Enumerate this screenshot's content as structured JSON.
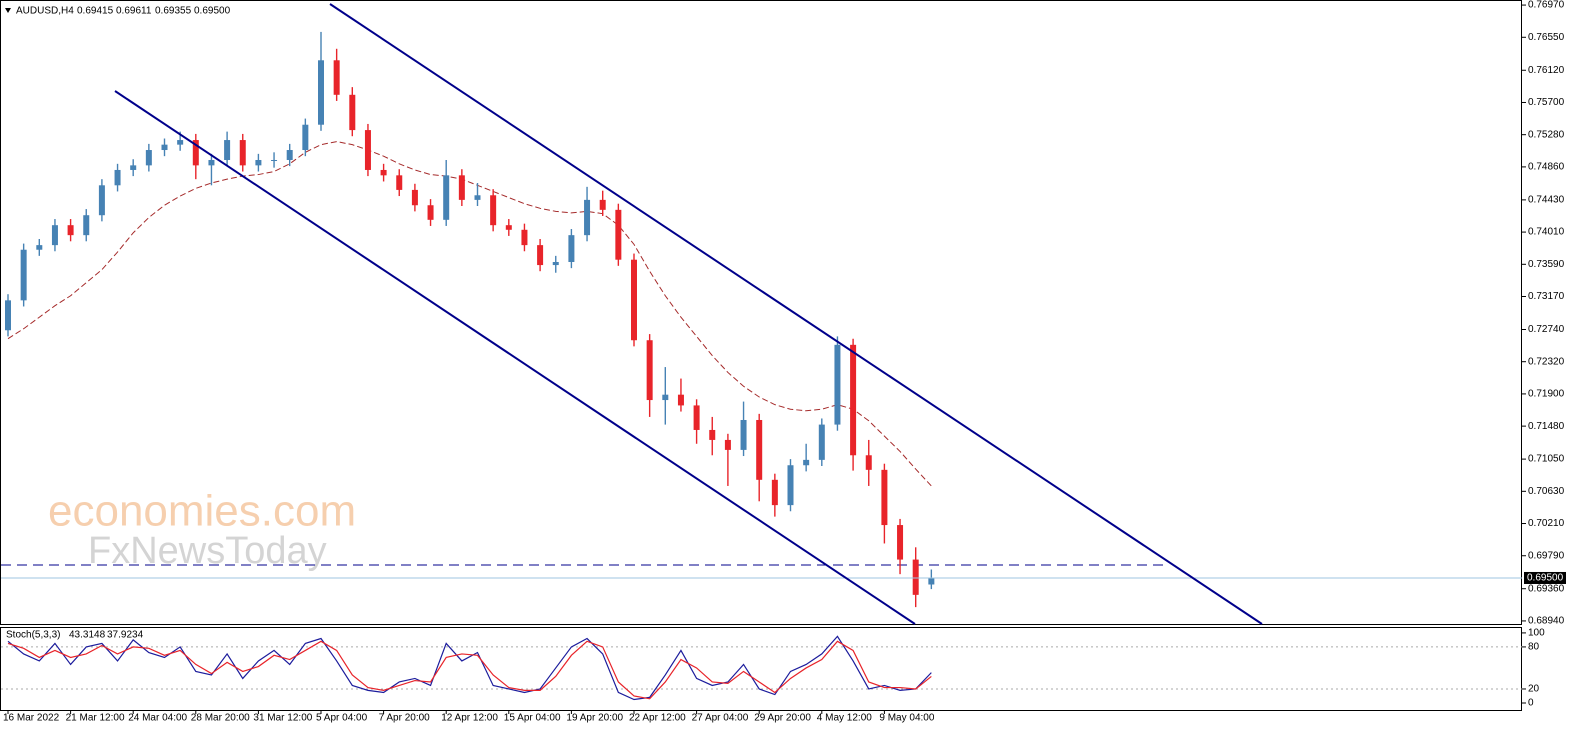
{
  "chart_data": [
    {
      "type": "candlestick",
      "title": "AUDUSD,H4",
      "last_close_label": "0.69500",
      "watermark": [
        "economies.com",
        "FxNewsToday"
      ],
      "up_color": "#4682b4",
      "down_color": "#e8242a",
      "categories": [
        "16 Mar 2022",
        null,
        null,
        null,
        "21 Mar 12:00",
        null,
        null,
        null,
        "24 Mar 04:00",
        null,
        null,
        null,
        "28 Mar 20:00",
        null,
        null,
        null,
        "31 Mar 12:00",
        null,
        null,
        null,
        "5 Apr 04:00",
        null,
        null,
        null,
        "7 Apr 20:00",
        null,
        null,
        null,
        "12 Apr 12:00",
        null,
        null,
        null,
        "15 Apr 04:00",
        null,
        null,
        null,
        "19 Apr 20:00",
        null,
        null,
        null,
        "22 Apr 12:00",
        null,
        null,
        null,
        "27 Apr 04:00",
        null,
        null,
        null,
        "29 Apr 20:00",
        null,
        null,
        null,
        "4 May 12:00",
        null,
        null,
        null,
        "9 May 04:00",
        null,
        null,
        null
      ],
      "open": [
        0.7273,
        0.7312,
        0.7378,
        0.7384,
        0.741,
        0.7397,
        0.7423,
        0.7462,
        0.7482,
        0.7488,
        0.7508,
        0.7515,
        0.7521,
        0.7488,
        0.7495,
        0.7521,
        0.7488,
        0.7495,
        0.7495,
        0.7508,
        0.7541,
        0.7625,
        0.758,
        0.7534,
        0.7482,
        0.7475,
        0.7456,
        0.7436,
        0.7417,
        0.7475,
        0.7443,
        0.7449,
        0.741,
        0.7404,
        0.7384,
        0.7358,
        0.7362,
        0.7397,
        0.7443,
        0.743,
        0.7365,
        0.726,
        0.7182,
        0.7189,
        0.7175,
        0.7143,
        0.713,
        0.7117,
        0.7156,
        0.7078,
        0.7045,
        0.7097,
        0.7104,
        0.715,
        0.7254,
        0.711,
        0.7091,
        0.7019,
        0.6974,
        0.69415
      ],
      "high": [
        0.732,
        0.7386,
        0.7392,
        0.7418,
        0.7418,
        0.7431,
        0.747,
        0.749,
        0.7496,
        0.7516,
        0.7523,
        0.7532,
        0.7529,
        0.7503,
        0.7532,
        0.7529,
        0.7503,
        0.7505,
        0.7516,
        0.7549,
        0.7662,
        0.764,
        0.759,
        0.7542,
        0.749,
        0.7483,
        0.7464,
        0.7444,
        0.7495,
        0.7483,
        0.7465,
        0.7457,
        0.7418,
        0.7412,
        0.7392,
        0.737,
        0.7405,
        0.746,
        0.7455,
        0.7438,
        0.7373,
        0.7268,
        0.7225,
        0.721,
        0.7183,
        0.716,
        0.7138,
        0.718,
        0.7164,
        0.7086,
        0.7105,
        0.7125,
        0.7158,
        0.7265,
        0.7262,
        0.713,
        0.7099,
        0.7027,
        0.699,
        0.69611
      ],
      "low": [
        0.7265,
        0.7304,
        0.737,
        0.7376,
        0.7389,
        0.7389,
        0.7415,
        0.7454,
        0.7474,
        0.748,
        0.75,
        0.7507,
        0.747,
        0.7462,
        0.7487,
        0.748,
        0.748,
        0.7485,
        0.7487,
        0.75,
        0.7533,
        0.7572,
        0.7526,
        0.7474,
        0.7467,
        0.7448,
        0.7428,
        0.7409,
        0.7409,
        0.7435,
        0.7435,
        0.7402,
        0.7396,
        0.7376,
        0.735,
        0.7348,
        0.7354,
        0.7389,
        0.7422,
        0.7357,
        0.7252,
        0.716,
        0.715,
        0.7167,
        0.7125,
        0.711,
        0.707,
        0.7109,
        0.705,
        0.703,
        0.7037,
        0.7089,
        0.7096,
        0.7142,
        0.709,
        0.707,
        0.6995,
        0.6955,
        0.6912,
        0.69355
      ],
      "close": [
        0.7312,
        0.7378,
        0.7384,
        0.741,
        0.7397,
        0.7423,
        0.7462,
        0.7482,
        0.7488,
        0.7508,
        0.7515,
        0.7521,
        0.7488,
        0.7495,
        0.7521,
        0.7488,
        0.7495,
        0.7495,
        0.7508,
        0.7541,
        0.7625,
        0.758,
        0.7534,
        0.7482,
        0.7475,
        0.7456,
        0.7436,
        0.7417,
        0.7475,
        0.7443,
        0.7449,
        0.741,
        0.7404,
        0.7384,
        0.7358,
        0.7362,
        0.7397,
        0.7443,
        0.743,
        0.7365,
        0.726,
        0.7182,
        0.7189,
        0.7175,
        0.7143,
        0.713,
        0.7117,
        0.7156,
        0.7078,
        0.7045,
        0.7097,
        0.7104,
        0.715,
        0.7254,
        0.711,
        0.7091,
        0.7019,
        0.6974,
        0.6928,
        0.695
      ],
      "ma": {
        "color": "#a52a2a",
        "values": [
          0.7262,
          0.7275,
          0.729,
          0.7305,
          0.7318,
          0.7335,
          0.7352,
          0.7375,
          0.74,
          0.742,
          0.7436,
          0.7448,
          0.7458,
          0.7465,
          0.747,
          0.7474,
          0.7476,
          0.748,
          0.749,
          0.7505,
          0.7515,
          0.7519,
          0.7515,
          0.7508,
          0.75,
          0.749,
          0.7482,
          0.7476,
          0.7474,
          0.747,
          0.7462,
          0.7454,
          0.7446,
          0.7438,
          0.7432,
          0.7428,
          0.7426,
          0.7428,
          0.7425,
          0.741,
          0.7385,
          0.735,
          0.7318,
          0.729,
          0.7265,
          0.724,
          0.7218,
          0.72,
          0.7186,
          0.7176,
          0.717,
          0.7168,
          0.717,
          0.7176,
          0.717,
          0.7155,
          0.7135,
          0.7115,
          0.7092,
          0.707
        ]
      },
      "levels": [
        0.6967
      ],
      "level_color": "#00008b",
      "ylim": [
        0.689,
        0.7701
      ],
      "yticks": [
        {
          "value": 0.7697,
          "label": "0.76970"
        },
        {
          "value": 0.7655,
          "label": "0.76550"
        },
        {
          "value": 0.7612,
          "label": "0.76120"
        },
        {
          "value": 0.757,
          "label": "0.75700"
        },
        {
          "value": 0.7528,
          "label": "0.75280"
        },
        {
          "value": 0.7486,
          "label": "0.74860"
        },
        {
          "value": 0.7443,
          "label": "0.74430"
        },
        {
          "value": 0.7401,
          "label": "0.74010"
        },
        {
          "value": 0.7359,
          "label": "0.73590"
        },
        {
          "value": 0.7317,
          "label": "0.73170"
        },
        {
          "value": 0.7274,
          "label": "0.72740"
        },
        {
          "value": 0.7232,
          "label": "0.72320"
        },
        {
          "value": 0.719,
          "label": "0.71900"
        },
        {
          "value": 0.7148,
          "label": "0.71480"
        },
        {
          "value": 0.7105,
          "label": "0.71050"
        },
        {
          "value": 0.7063,
          "label": "0.70630"
        },
        {
          "value": 0.7021,
          "label": "0.70210"
        },
        {
          "value": 0.6979,
          "label": "0.69790"
        },
        {
          "value": 0.6936,
          "label": "0.69360"
        },
        {
          "value": 0.6894,
          "label": "0.68940"
        }
      ]
    },
    {
      "type": "line",
      "title": "Stoch(5,3,3)",
      "series": [
        {
          "color": "#1c1c9c",
          "values": [
            88,
            70,
            60,
            85,
            55,
            80,
            85,
            60,
            90,
            72,
            65,
            80,
            45,
            40,
            70,
            35,
            60,
            75,
            55,
            85,
            92,
            60,
            25,
            18,
            15,
            30,
            35,
            25,
            85,
            60,
            72,
            25,
            20,
            15,
            20,
            50,
            80,
            92,
            70,
            15,
            5,
            8,
            40,
            75,
            35,
            25,
            30,
            55,
            20,
            12,
            45,
            55,
            70,
            95,
            60,
            20,
            25,
            18,
            20,
            43.3148
          ]
        },
        {
          "color": "#e8242a",
          "values": [
            85,
            78,
            65,
            75,
            65,
            70,
            82,
            70,
            80,
            78,
            68,
            75,
            55,
            42,
            58,
            45,
            52,
            68,
            62,
            75,
            88,
            75,
            40,
            22,
            18,
            25,
            32,
            30,
            65,
            70,
            68,
            40,
            22,
            18,
            18,
            38,
            68,
            88,
            80,
            30,
            10,
            6,
            30,
            62,
            50,
            30,
            28,
            45,
            30,
            15,
            35,
            50,
            62,
            88,
            75,
            30,
            22,
            22,
            20,
            37.9234
          ]
        }
      ],
      "levels": [
        20,
        80
      ],
      "ylim": [
        -10,
        107
      ],
      "yticks": [
        0,
        20,
        80,
        100
      ]
    }
  ]
}
